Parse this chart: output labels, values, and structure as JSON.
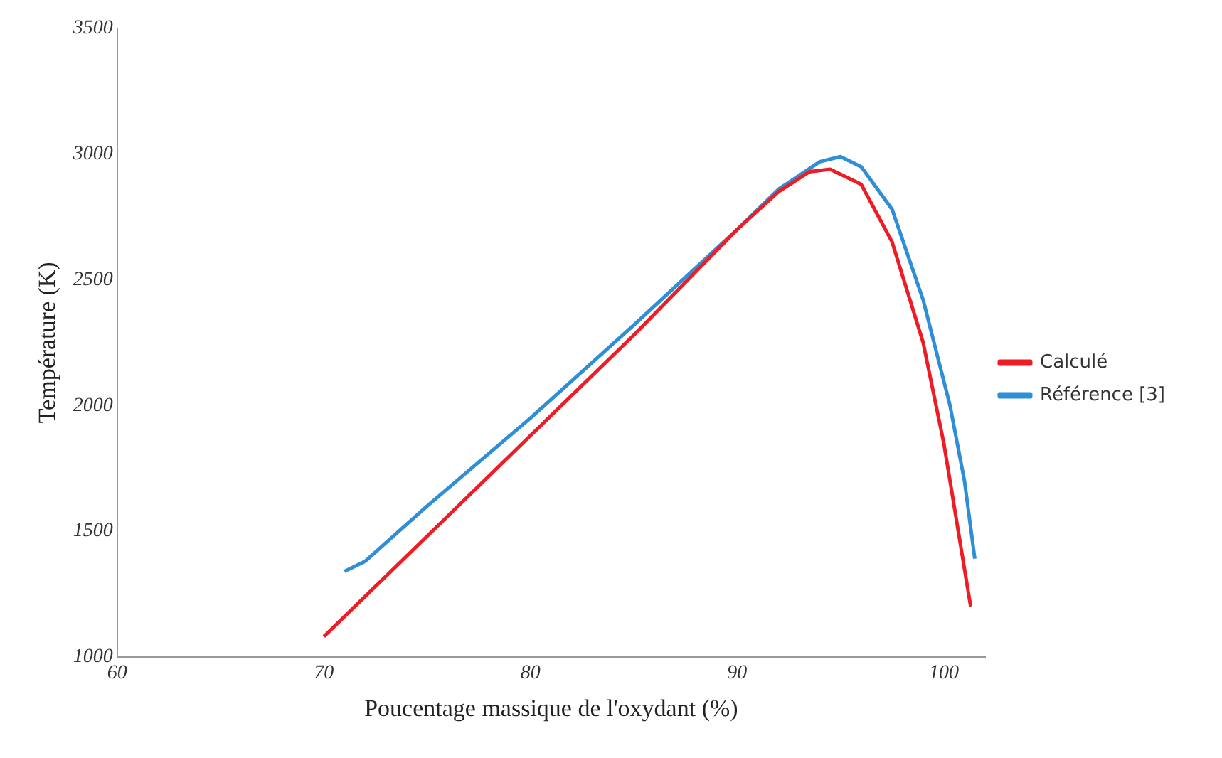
{
  "chart_data": {
    "type": "line",
    "xlabel": "Poucentage massique de l'oxydant (%)",
    "ylabel": "Température (K)",
    "xlim": [
      60,
      102
    ],
    "xticks": [
      60,
      70,
      80,
      90,
      100
    ],
    "ylim": [
      1000,
      3500
    ],
    "yticks": [
      1000,
      1500,
      2000,
      2500,
      3000,
      3500
    ],
    "grid": false,
    "legend": "right",
    "marker": "none",
    "line_style": "solid",
    "series": [
      {
        "name": "Calculé",
        "color": "#ee1c25",
        "x": [
          70,
          75,
          80,
          85,
          90,
          92,
          93.5,
          94.5,
          96,
          97.5,
          99,
          100,
          100.8,
          101.3
        ],
        "values": [
          1080,
          1480,
          1880,
          2280,
          2700,
          2850,
          2930,
          2940,
          2880,
          2650,
          2250,
          1850,
          1450,
          1200
        ]
      },
      {
        "name": "Référence [3]",
        "color": "#2e8fd6",
        "x": [
          71,
          72,
          75,
          80,
          85,
          90,
          92,
          94,
          95,
          96,
          97.5,
          99,
          100.3,
          101,
          101.5
        ],
        "values": [
          1340,
          1380,
          1600,
          1950,
          2320,
          2700,
          2860,
          2970,
          2990,
          2950,
          2780,
          2420,
          2000,
          1700,
          1390
        ]
      }
    ]
  }
}
